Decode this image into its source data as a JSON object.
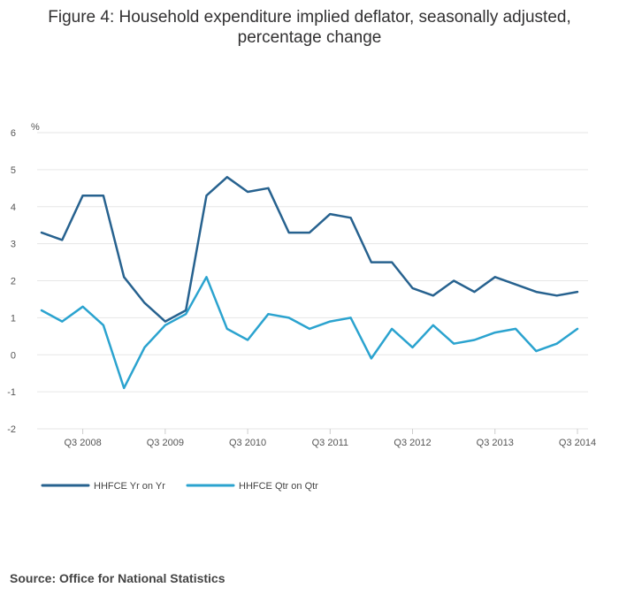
{
  "chart_data": {
    "type": "line",
    "title_line1": "Figure 4: Household expenditure implied deflator, seasonally adjusted,",
    "title_line2": "percentage change",
    "ylabel": "%",
    "ylim": [
      -2,
      6
    ],
    "yticks": [
      6,
      5,
      4,
      3,
      2,
      1,
      0,
      -1,
      -2
    ],
    "grid": true,
    "legend_position": "bottom-left",
    "x": [
      "Q1 2008",
      "Q2 2008",
      "Q3 2008",
      "Q4 2008",
      "Q1 2009",
      "Q2 2009",
      "Q3 2009",
      "Q4 2009",
      "Q1 2010",
      "Q2 2010",
      "Q3 2010",
      "Q4 2010",
      "Q1 2011",
      "Q2 2011",
      "Q3 2011",
      "Q4 2011",
      "Q1 2012",
      "Q2 2012",
      "Q3 2012",
      "Q4 2012",
      "Q1 2013",
      "Q2 2013",
      "Q3 2013",
      "Q4 2013",
      "Q1 2014",
      "Q2 2014",
      "Q3 2014"
    ],
    "xtick_labels": [
      "Q3 2008",
      "Q3 2009",
      "Q3 2010",
      "Q3 2011",
      "Q3 2012",
      "Q3 2013",
      "Q3 2014"
    ],
    "series": [
      {
        "name": "HHFCE Yr on Yr",
        "color": "#27628f",
        "values": [
          3.3,
          3.1,
          4.3,
          4.3,
          2.1,
          1.4,
          0.9,
          1.2,
          4.3,
          4.8,
          4.4,
          4.5,
          3.3,
          3.3,
          3.8,
          3.7,
          2.5,
          2.5,
          1.8,
          1.6,
          2.0,
          1.7,
          2.1,
          1.9,
          1.7,
          1.6,
          1.7
        ]
      },
      {
        "name": "HHFCE Qtr on Qtr",
        "color": "#2ba3cf",
        "values": [
          1.2,
          0.9,
          1.3,
          0.8,
          -0.9,
          0.2,
          0.8,
          1.1,
          2.1,
          0.7,
          0.4,
          1.1,
          1.0,
          0.7,
          0.9,
          1.0,
          -0.1,
          0.7,
          0.2,
          0.8,
          0.3,
          0.4,
          0.6,
          0.7,
          0.1,
          0.3,
          0.7
        ]
      }
    ]
  },
  "source_text": "Source: Office for National Statistics",
  "colors": {
    "grid": "#e6e6e6",
    "axis_text": "#555555",
    "title": "#323132"
  }
}
